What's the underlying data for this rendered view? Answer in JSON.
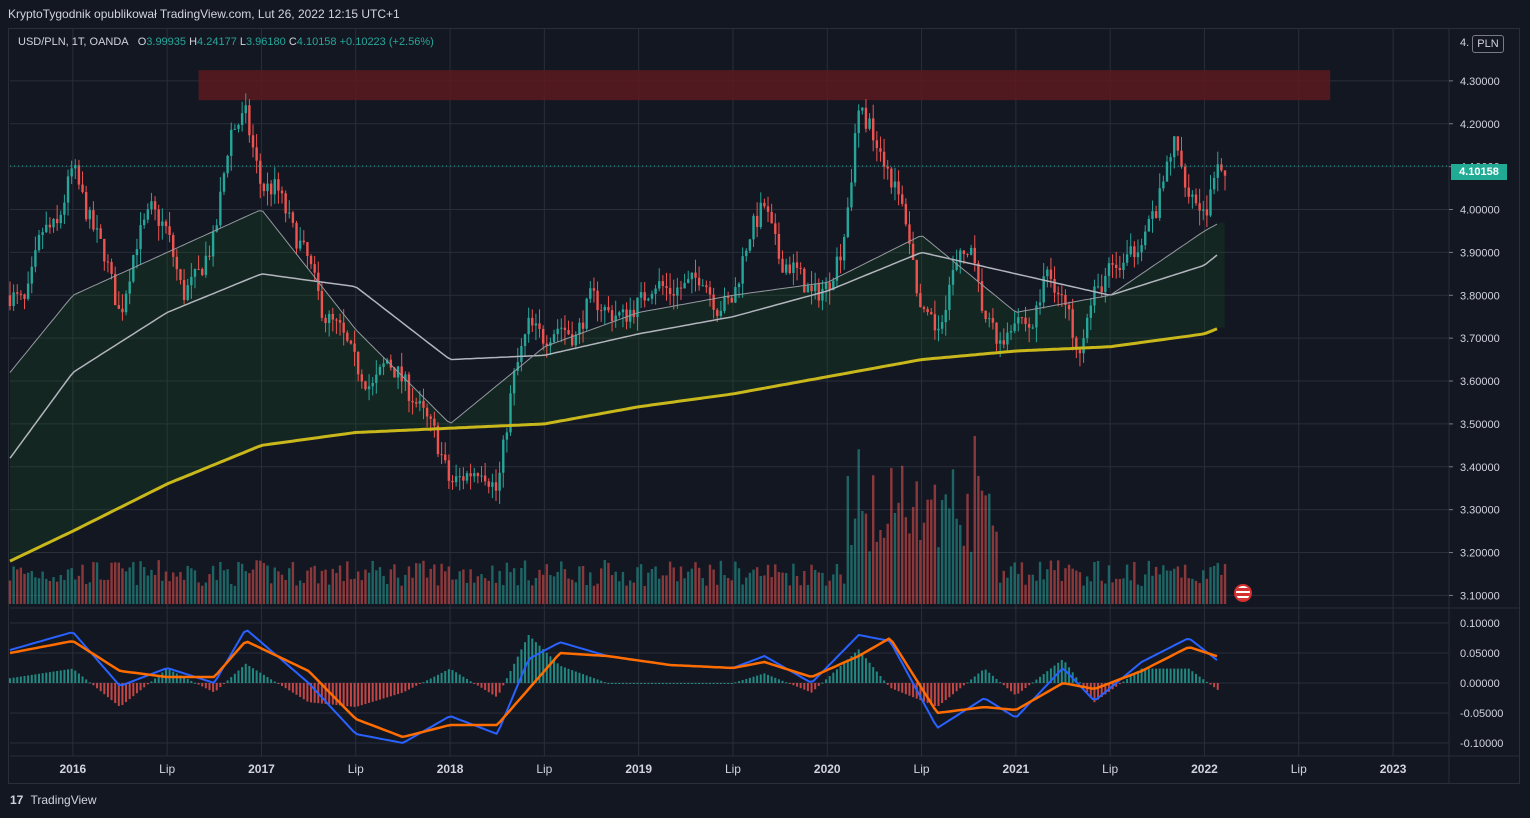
{
  "header": {
    "text": "KryptoTygodnik opublikował TradingView.com, Lut 26, 2022 12:15 UTC+1"
  },
  "legend": {
    "symbol": "USD/PLN, 1T, OANDA",
    "o_label": "O",
    "o_value": "3.99935",
    "h_label": "H",
    "h_value": "4.24177",
    "l_label": "L",
    "l_value": "3.96180",
    "c_label": "C",
    "c_value": "4.10158",
    "change": "+0.10223 (+2.56%)"
  },
  "currency_button": "PLN",
  "last_price_label": "4.10158",
  "footer": {
    "logo": "17",
    "brand": "TradingView"
  },
  "colors": {
    "background": "#131722",
    "grid": "#2a2e39",
    "up": "#26a69a",
    "down": "#ef5350",
    "ma200": "#c9b81c",
    "ma50": "#b2b5be",
    "ma20": "#9598a1",
    "macd": "#2962ff",
    "signal": "#ff6d00",
    "resistance_zone": "#5c1a1f"
  },
  "chart_data": [
    {
      "type": "candlestick",
      "title": "USD/PLN, 1T, OANDA",
      "xlabel": "",
      "ylabel": "",
      "x_ticks": [
        "2016",
        "Lip",
        "2017",
        "Lip",
        "2018",
        "Lip",
        "2019",
        "Lip",
        "2020",
        "Lip",
        "2021",
        "Lip",
        "2022",
        "Lip",
        "2023"
      ],
      "y_ticks": [
        "4.30000",
        "4.20000",
        "4.10000",
        "4.00000",
        "3.90000",
        "3.80000",
        "3.70000",
        "3.60000",
        "3.50000",
        "3.40000",
        "3.30000",
        "3.20000",
        "3.10000"
      ],
      "ylim": [
        3.08,
        4.4
      ],
      "grid": true,
      "last_close": 4.10158,
      "resistance_zone": {
        "from_date": "2016-09",
        "to_date": "2022-09",
        "low": 4.255,
        "high": 4.325
      },
      "close_path": [
        {
          "date": "2015-09",
          "value": 3.8
        },
        {
          "date": "2015-10",
          "value": 3.78
        },
        {
          "date": "2015-11",
          "value": 3.95
        },
        {
          "date": "2015-12",
          "value": 3.96
        },
        {
          "date": "2016-01",
          "value": 4.1
        },
        {
          "date": "2016-02",
          "value": 3.98
        },
        {
          "date": "2016-03",
          "value": 3.9
        },
        {
          "date": "2016-04",
          "value": 3.75
        },
        {
          "date": "2016-05",
          "value": 3.92
        },
        {
          "date": "2016-06",
          "value": 4.0
        },
        {
          "date": "2016-07",
          "value": 3.95
        },
        {
          "date": "2016-08",
          "value": 3.8
        },
        {
          "date": "2016-09",
          "value": 3.85
        },
        {
          "date": "2016-10",
          "value": 3.93
        },
        {
          "date": "2016-11",
          "value": 4.18
        },
        {
          "date": "2016-12",
          "value": 4.22
        },
        {
          "date": "2017-01",
          "value": 4.05
        },
        {
          "date": "2017-02",
          "value": 4.05
        },
        {
          "date": "2017-03",
          "value": 3.95
        },
        {
          "date": "2017-04",
          "value": 3.88
        },
        {
          "date": "2017-05",
          "value": 3.75
        },
        {
          "date": "2017-06",
          "value": 3.72
        },
        {
          "date": "2017-07",
          "value": 3.64
        },
        {
          "date": "2017-08",
          "value": 3.58
        },
        {
          "date": "2017-09",
          "value": 3.65
        },
        {
          "date": "2017-10",
          "value": 3.6
        },
        {
          "date": "2017-11",
          "value": 3.54
        },
        {
          "date": "2017-12",
          "value": 3.48
        },
        {
          "date": "2018-01",
          "value": 3.36
        },
        {
          "date": "2018-02",
          "value": 3.38
        },
        {
          "date": "2018-03",
          "value": 3.4
        },
        {
          "date": "2018-04",
          "value": 3.34
        },
        {
          "date": "2018-05",
          "value": 3.6
        },
        {
          "date": "2018-06",
          "value": 3.73
        },
        {
          "date": "2018-07",
          "value": 3.7
        },
        {
          "date": "2018-08",
          "value": 3.73
        },
        {
          "date": "2018-09",
          "value": 3.7
        },
        {
          "date": "2018-10",
          "value": 3.8
        },
        {
          "date": "2018-11",
          "value": 3.76
        },
        {
          "date": "2018-12",
          "value": 3.75
        },
        {
          "date": "2019-01",
          "value": 3.78
        },
        {
          "date": "2019-02",
          "value": 3.83
        },
        {
          "date": "2019-03",
          "value": 3.81
        },
        {
          "date": "2019-04",
          "value": 3.82
        },
        {
          "date": "2019-05",
          "value": 3.85
        },
        {
          "date": "2019-06",
          "value": 3.77
        },
        {
          "date": "2019-07",
          "value": 3.79
        },
        {
          "date": "2019-08",
          "value": 3.94
        },
        {
          "date": "2019-09",
          "value": 4.01
        },
        {
          "date": "2019-10",
          "value": 3.88
        },
        {
          "date": "2019-11",
          "value": 3.86
        },
        {
          "date": "2019-12",
          "value": 3.8
        },
        {
          "date": "2020-01",
          "value": 3.82
        },
        {
          "date": "2020-02",
          "value": 3.92
        },
        {
          "date": "2020-03",
          "value": 4.23
        },
        {
          "date": "2020-04",
          "value": 4.18
        },
        {
          "date": "2020-05",
          "value": 4.08
        },
        {
          "date": "2020-06",
          "value": 3.98
        },
        {
          "date": "2020-07",
          "value": 3.75
        },
        {
          "date": "2020-08",
          "value": 3.72
        },
        {
          "date": "2020-09",
          "value": 3.85
        },
        {
          "date": "2020-10",
          "value": 3.92
        },
        {
          "date": "2020-11",
          "value": 3.75
        },
        {
          "date": "2020-12",
          "value": 3.68
        },
        {
          "date": "2021-01",
          "value": 3.76
        },
        {
          "date": "2021-02",
          "value": 3.72
        },
        {
          "date": "2021-03",
          "value": 3.86
        },
        {
          "date": "2021-04",
          "value": 3.79
        },
        {
          "date": "2021-05",
          "value": 3.68
        },
        {
          "date": "2021-06",
          "value": 3.8
        },
        {
          "date": "2021-07",
          "value": 3.86
        },
        {
          "date": "2021-08",
          "value": 3.87
        },
        {
          "date": "2021-09",
          "value": 3.94
        },
        {
          "date": "2021-10",
          "value": 4.0
        },
        {
          "date": "2021-11",
          "value": 4.16
        },
        {
          "date": "2021-12",
          "value": 4.05
        },
        {
          "date": "2022-01",
          "value": 3.99
        },
        {
          "date": "2022-02",
          "value": 4.1
        }
      ],
      "ma200_path": [
        {
          "date": "2015-09",
          "value": 3.18
        },
        {
          "date": "2016-01",
          "value": 3.25
        },
        {
          "date": "2016-07",
          "value": 3.36
        },
        {
          "date": "2017-01",
          "value": 3.45
        },
        {
          "date": "2017-07",
          "value": 3.48
        },
        {
          "date": "2018-01",
          "value": 3.49
        },
        {
          "date": "2018-07",
          "value": 3.5
        },
        {
          "date": "2019-01",
          "value": 3.54
        },
        {
          "date": "2019-07",
          "value": 3.57
        },
        {
          "date": "2020-01",
          "value": 3.61
        },
        {
          "date": "2020-07",
          "value": 3.65
        },
        {
          "date": "2021-01",
          "value": 3.67
        },
        {
          "date": "2021-07",
          "value": 3.68
        },
        {
          "date": "2022-01",
          "value": 3.71
        },
        {
          "date": "2022-02",
          "value": 3.725
        }
      ],
      "ma50_path": [
        {
          "date": "2015-09",
          "value": 3.42
        },
        {
          "date": "2016-01",
          "value": 3.62
        },
        {
          "date": "2016-07",
          "value": 3.76
        },
        {
          "date": "2017-01",
          "value": 3.85
        },
        {
          "date": "2017-07",
          "value": 3.82
        },
        {
          "date": "2018-01",
          "value": 3.65
        },
        {
          "date": "2018-07",
          "value": 3.66
        },
        {
          "date": "2019-01",
          "value": 3.71
        },
        {
          "date": "2019-07",
          "value": 3.75
        },
        {
          "date": "2020-01",
          "value": 3.81
        },
        {
          "date": "2020-07",
          "value": 3.9
        },
        {
          "date": "2021-01",
          "value": 3.85
        },
        {
          "date": "2021-07",
          "value": 3.8
        },
        {
          "date": "2022-01",
          "value": 3.87
        },
        {
          "date": "2022-02",
          "value": 3.9
        }
      ],
      "ma20_path": [
        {
          "date": "2015-09",
          "value": 3.62
        },
        {
          "date": "2016-01",
          "value": 3.8
        },
        {
          "date": "2016-07",
          "value": 3.9
        },
        {
          "date": "2017-01",
          "value": 4.0
        },
        {
          "date": "2017-07",
          "value": 3.72
        },
        {
          "date": "2018-01",
          "value": 3.5
        },
        {
          "date": "2018-07",
          "value": 3.68
        },
        {
          "date": "2019-01",
          "value": 3.76
        },
        {
          "date": "2019-07",
          "value": 3.8
        },
        {
          "date": "2020-01",
          "value": 3.83
        },
        {
          "date": "2020-07",
          "value": 3.94
        },
        {
          "date": "2021-01",
          "value": 3.76
        },
        {
          "date": "2021-07",
          "value": 3.8
        },
        {
          "date": "2022-01",
          "value": 3.95
        },
        {
          "date": "2022-02",
          "value": 3.97
        }
      ]
    },
    {
      "type": "macd",
      "y_ticks": [
        "0.10000",
        "0.05000",
        "0.00000",
        "-0.05000",
        "-0.10000"
      ],
      "ylim": [
        -0.115,
        0.115
      ],
      "macd_path": [
        {
          "date": "2015-09",
          "value": 0.055
        },
        {
          "date": "2016-01",
          "value": 0.085
        },
        {
          "date": "2016-04",
          "value": -0.005
        },
        {
          "date": "2016-07",
          "value": 0.025
        },
        {
          "date": "2016-10",
          "value": 0.0
        },
        {
          "date": "2016-12",
          "value": 0.09
        },
        {
          "date": "2017-04",
          "value": 0.0
        },
        {
          "date": "2017-07",
          "value": -0.085
        },
        {
          "date": "2017-10",
          "value": -0.1
        },
        {
          "date": "2018-01",
          "value": -0.055
        },
        {
          "date": "2018-04",
          "value": -0.085
        },
        {
          "date": "2018-06",
          "value": 0.04
        },
        {
          "date": "2018-08",
          "value": 0.068
        },
        {
          "date": "2018-11",
          "value": 0.045
        },
        {
          "date": "2019-03",
          "value": 0.03
        },
        {
          "date": "2019-07",
          "value": 0.025
        },
        {
          "date": "2019-09",
          "value": 0.045
        },
        {
          "date": "2019-12",
          "value": 0.0
        },
        {
          "date": "2020-03",
          "value": 0.08
        },
        {
          "date": "2020-05",
          "value": 0.07
        },
        {
          "date": "2020-08",
          "value": -0.075
        },
        {
          "date": "2020-11",
          "value": -0.025
        },
        {
          "date": "2021-01",
          "value": -0.058
        },
        {
          "date": "2021-04",
          "value": 0.025
        },
        {
          "date": "2021-06",
          "value": -0.03
        },
        {
          "date": "2021-09",
          "value": 0.035
        },
        {
          "date": "2021-12",
          "value": 0.075
        },
        {
          "date": "2022-02",
          "value": 0.034
        }
      ],
      "signal_path": [
        {
          "date": "2015-09",
          "value": 0.05
        },
        {
          "date": "2016-01",
          "value": 0.07
        },
        {
          "date": "2016-04",
          "value": 0.02
        },
        {
          "date": "2016-07",
          "value": 0.01
        },
        {
          "date": "2016-10",
          "value": 0.01
        },
        {
          "date": "2016-12",
          "value": 0.07
        },
        {
          "date": "2017-04",
          "value": 0.02
        },
        {
          "date": "2017-07",
          "value": -0.06
        },
        {
          "date": "2017-10",
          "value": -0.09
        },
        {
          "date": "2018-01",
          "value": -0.07
        },
        {
          "date": "2018-04",
          "value": -0.07
        },
        {
          "date": "2018-06",
          "value": -0.01
        },
        {
          "date": "2018-08",
          "value": 0.05
        },
        {
          "date": "2018-11",
          "value": 0.045
        },
        {
          "date": "2019-03",
          "value": 0.03
        },
        {
          "date": "2019-07",
          "value": 0.025
        },
        {
          "date": "2019-09",
          "value": 0.035
        },
        {
          "date": "2019-12",
          "value": 0.01
        },
        {
          "date": "2020-03",
          "value": 0.045
        },
        {
          "date": "2020-05",
          "value": 0.075
        },
        {
          "date": "2020-08",
          "value": -0.05
        },
        {
          "date": "2020-11",
          "value": -0.04
        },
        {
          "date": "2021-01",
          "value": -0.045
        },
        {
          "date": "2021-04",
          "value": 0.0
        },
        {
          "date": "2021-06",
          "value": -0.01
        },
        {
          "date": "2021-09",
          "value": 0.02
        },
        {
          "date": "2021-12",
          "value": 0.06
        },
        {
          "date": "2022-02",
          "value": 0.043
        }
      ]
    }
  ]
}
